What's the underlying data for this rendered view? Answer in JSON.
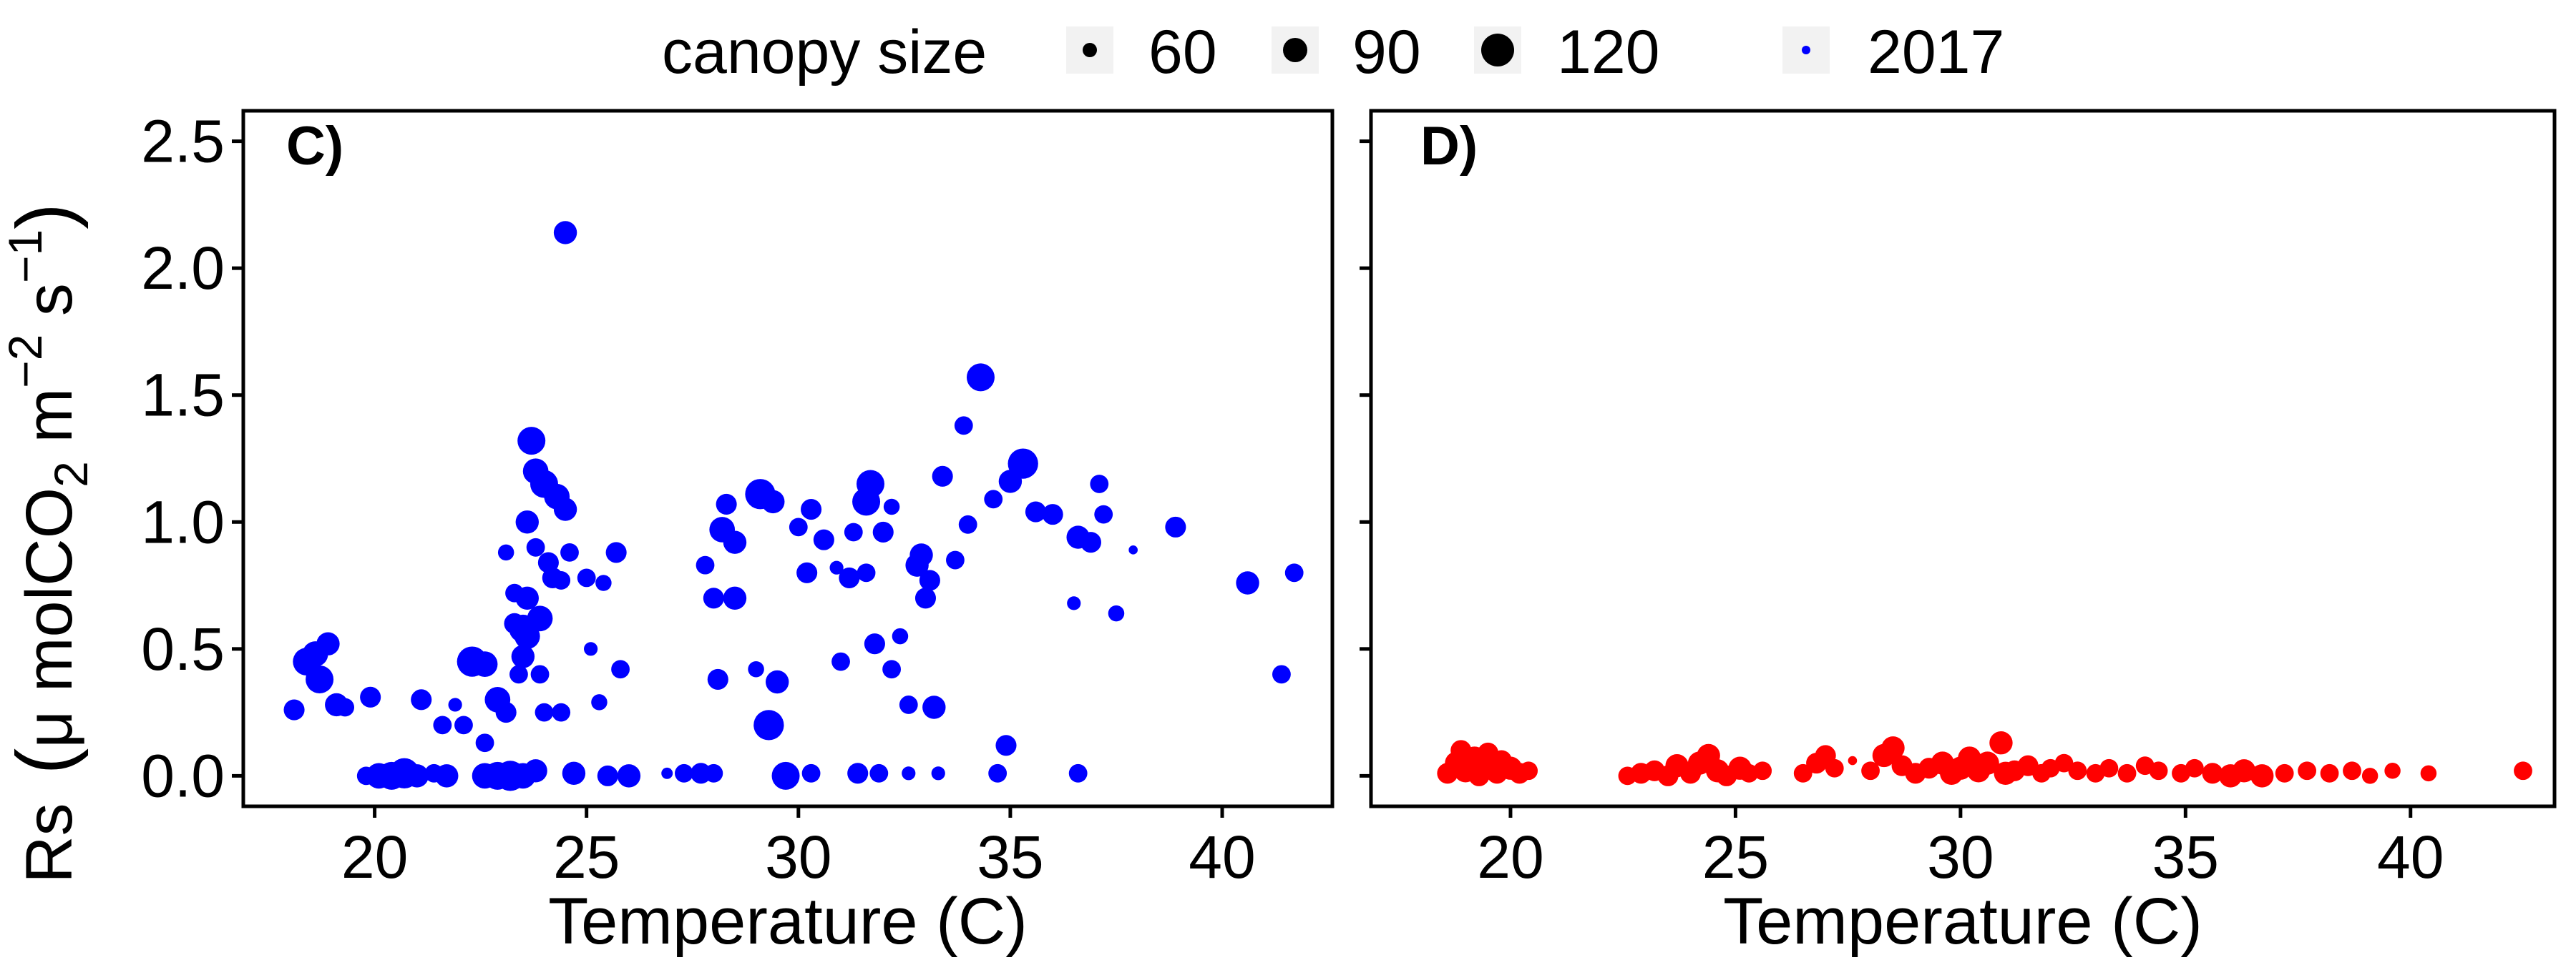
{
  "legend": {
    "title": "canopy size",
    "size_items": [
      {
        "label": "60",
        "size": 60
      },
      {
        "label": "90",
        "size": 90
      },
      {
        "label": "120",
        "size": 120
      }
    ],
    "year_item": {
      "label": "2017",
      "color": "#0000ff"
    }
  },
  "y_axis_title": {
    "main": "Rs",
    "unit_open": "(",
    "unit_body": "μ molCO",
    "unit_sub": "2",
    "unit_m": " m",
    "unit_sup1": "−2",
    "unit_s": " s",
    "unit_sup2": "−1",
    "unit_close": ")"
  },
  "chart_data": [
    {
      "type": "scatter",
      "panel_label": "C)",
      "color": "#0000ff",
      "xlabel": "Temperature (C)",
      "xlim": [
        16.9,
        42.6
      ],
      "ylim": [
        -0.12,
        2.62
      ],
      "xticks": [
        20,
        25,
        30,
        35,
        40
      ],
      "yticks": [
        0.0,
        0.5,
        1.0,
        1.5,
        2.0,
        2.5
      ],
      "ytick_labels": [
        "0.0",
        "0.5",
        "1.0",
        "1.5",
        "2.0",
        "2.5"
      ],
      "points": [
        [
          18.1,
          0.26,
          70
        ],
        [
          18.4,
          0.45,
          100
        ],
        [
          18.7,
          0.38,
          100
        ],
        [
          18.9,
          0.52,
          80
        ],
        [
          18.6,
          0.48,
          90
        ],
        [
          19.1,
          0.28,
          80
        ],
        [
          19.3,
          0.27,
          60
        ],
        [
          19.9,
          0.31,
          70
        ],
        [
          19.8,
          0.0,
          60
        ],
        [
          20.1,
          0.0,
          90
        ],
        [
          20.4,
          0.0,
          100
        ],
        [
          20.7,
          0.01,
          110
        ],
        [
          21.0,
          0.0,
          80
        ],
        [
          21.4,
          0.01,
          60
        ],
        [
          21.7,
          0.0,
          80
        ],
        [
          21.1,
          0.3,
          70
        ],
        [
          21.6,
          0.2,
          60
        ],
        [
          21.9,
          0.28,
          40
        ],
        [
          22.1,
          0.2,
          60
        ],
        [
          22.3,
          0.45,
          110
        ],
        [
          22.6,
          0.44,
          90
        ],
        [
          22.6,
          0.13,
          60
        ],
        [
          22.9,
          0.3,
          90
        ],
        [
          23.1,
          0.25,
          70
        ],
        [
          22.6,
          0.0,
          90
        ],
        [
          22.9,
          0.0,
          100
        ],
        [
          23.2,
          0.0,
          110
        ],
        [
          23.5,
          0.0,
          90
        ],
        [
          23.8,
          0.02,
          80
        ],
        [
          23.1,
          0.88,
          50
        ],
        [
          23.3,
          0.6,
          70
        ],
        [
          23.3,
          0.72,
          60
        ],
        [
          23.4,
          0.4,
          60
        ],
        [
          23.5,
          0.47,
          80
        ],
        [
          23.5,
          0.58,
          100
        ],
        [
          23.6,
          0.55,
          90
        ],
        [
          23.6,
          0.7,
          80
        ],
        [
          23.6,
          1.0,
          80
        ],
        [
          23.7,
          1.32,
          100
        ],
        [
          23.8,
          1.2,
          90
        ],
        [
          23.8,
          0.9,
          60
        ],
        [
          23.9,
          0.62,
          90
        ],
        [
          24.0,
          1.15,
          100
        ],
        [
          24.1,
          0.84,
          70
        ],
        [
          23.9,
          0.4,
          60
        ],
        [
          24.0,
          0.25,
          60
        ],
        [
          24.3,
          1.1,
          90
        ],
        [
          24.5,
          1.05,
          80
        ],
        [
          24.2,
          0.78,
          70
        ],
        [
          24.4,
          0.77,
          60
        ],
        [
          24.4,
          0.25,
          60
        ],
        [
          24.6,
          0.88,
          60
        ],
        [
          24.5,
          2.14,
          80
        ],
        [
          24.7,
          0.01,
          80
        ],
        [
          25.0,
          0.78,
          60
        ],
        [
          25.4,
          0.76,
          50
        ],
        [
          25.1,
          0.5,
          40
        ],
        [
          25.3,
          0.29,
          50
        ],
        [
          25.5,
          0.0,
          70
        ],
        [
          25.7,
          0.88,
          70
        ],
        [
          25.8,
          0.42,
          60
        ],
        [
          26.0,
          0.0,
          80
        ],
        [
          26.9,
          0.01,
          30
        ],
        [
          27.3,
          0.01,
          60
        ],
        [
          27.7,
          0.01,
          70
        ],
        [
          28.0,
          0.01,
          60
        ],
        [
          27.8,
          0.83,
          60
        ],
        [
          28.0,
          0.7,
          70
        ],
        [
          28.1,
          0.38,
          70
        ],
        [
          28.2,
          0.97,
          90
        ],
        [
          28.3,
          1.07,
          70
        ],
        [
          28.5,
          0.92,
          80
        ],
        [
          28.5,
          0.7,
          80
        ],
        [
          29.0,
          0.42,
          50
        ],
        [
          29.3,
          0.2,
          110
        ],
        [
          29.1,
          1.11,
          110
        ],
        [
          29.4,
          1.08,
          80
        ],
        [
          29.5,
          0.37,
          80
        ],
        [
          29.7,
          0.0,
          100
        ],
        [
          30.0,
          0.98,
          60
        ],
        [
          30.2,
          0.8,
          70
        ],
        [
          30.3,
          1.05,
          70
        ],
        [
          30.6,
          0.93,
          70
        ],
        [
          30.3,
          0.01,
          60
        ],
        [
          30.9,
          0.82,
          40
        ],
        [
          31.0,
          0.45,
          60
        ],
        [
          31.2,
          0.78,
          70
        ],
        [
          31.3,
          0.96,
          60
        ],
        [
          31.4,
          0.01,
          70
        ],
        [
          31.6,
          1.08,
          100
        ],
        [
          31.7,
          1.15,
          100
        ],
        [
          31.6,
          0.8,
          60
        ],
        [
          31.8,
          0.52,
          70
        ],
        [
          31.9,
          0.01,
          60
        ],
        [
          32.0,
          0.96,
          70
        ],
        [
          32.2,
          0.42,
          60
        ],
        [
          32.2,
          1.06,
          50
        ],
        [
          32.4,
          0.55,
          50
        ],
        [
          32.6,
          0.28,
          60
        ],
        [
          32.6,
          0.01,
          40
        ],
        [
          32.8,
          0.83,
          80
        ],
        [
          32.9,
          0.87,
          80
        ],
        [
          33.0,
          0.7,
          70
        ],
        [
          33.1,
          0.77,
          70
        ],
        [
          33.2,
          0.27,
          80
        ],
        [
          33.3,
          0.01,
          40
        ],
        [
          33.4,
          1.18,
          70
        ],
        [
          33.7,
          0.85,
          60
        ],
        [
          33.9,
          1.38,
          60
        ],
        [
          34.0,
          0.99,
          60
        ],
        [
          34.3,
          1.57,
          100
        ],
        [
          34.6,
          1.09,
          60
        ],
        [
          34.7,
          0.01,
          60
        ],
        [
          34.9,
          0.12,
          70
        ],
        [
          35.0,
          1.16,
          80
        ],
        [
          35.3,
          1.23,
          110
        ],
        [
          35.6,
          1.04,
          70
        ],
        [
          36.0,
          1.03,
          70
        ],
        [
          36.5,
          0.68,
          40
        ],
        [
          36.6,
          0.94,
          80
        ],
        [
          36.9,
          0.92,
          70
        ],
        [
          36.6,
          0.01,
          60
        ],
        [
          37.1,
          1.15,
          60
        ],
        [
          37.2,
          1.03,
          60
        ],
        [
          37.5,
          0.64,
          50
        ],
        [
          37.9,
          0.89,
          20
        ],
        [
          38.9,
          0.98,
          70
        ],
        [
          40.6,
          0.76,
          80
        ],
        [
          41.4,
          0.4,
          60
        ],
        [
          41.7,
          0.8,
          60
        ]
      ]
    },
    {
      "type": "scatter",
      "panel_label": "D)",
      "color": "#ff0000",
      "xlabel": "Temperature (C)",
      "xlim": [
        16.9,
        43.2
      ],
      "ylim": [
        -0.12,
        2.62
      ],
      "xticks": [
        20,
        25,
        30,
        35,
        40
      ],
      "yticks": [
        0.0,
        0.5,
        1.0,
        1.5,
        2.0,
        2.5
      ],
      "points": [
        [
          18.6,
          0.01,
          70
        ],
        [
          18.8,
          0.05,
          80
        ],
        [
          18.9,
          0.1,
          70
        ],
        [
          19.0,
          0.02,
          80
        ],
        [
          19.2,
          0.07,
          80
        ],
        [
          19.3,
          0.0,
          70
        ],
        [
          19.4,
          0.04,
          80
        ],
        [
          19.5,
          0.09,
          70
        ],
        [
          19.7,
          0.01,
          70
        ],
        [
          19.8,
          0.06,
          70
        ],
        [
          20.0,
          0.03,
          80
        ],
        [
          20.2,
          0.01,
          70
        ],
        [
          20.4,
          0.02,
          60
        ],
        [
          22.6,
          0.0,
          60
        ],
        [
          22.9,
          0.01,
          70
        ],
        [
          23.2,
          0.02,
          70
        ],
        [
          23.5,
          0.0,
          70
        ],
        [
          23.7,
          0.04,
          80
        ],
        [
          24.0,
          0.01,
          70
        ],
        [
          24.2,
          0.05,
          80
        ],
        [
          24.4,
          0.08,
          80
        ],
        [
          24.6,
          0.02,
          80
        ],
        [
          24.8,
          0.0,
          70
        ],
        [
          25.1,
          0.03,
          80
        ],
        [
          25.3,
          0.01,
          60
        ],
        [
          25.6,
          0.02,
          60
        ],
        [
          26.5,
          0.01,
          60
        ],
        [
          26.8,
          0.05,
          70
        ],
        [
          27.0,
          0.08,
          70
        ],
        [
          27.2,
          0.03,
          60
        ],
        [
          27.6,
          0.06,
          20
        ],
        [
          28.0,
          0.02,
          60
        ],
        [
          28.3,
          0.08,
          80
        ],
        [
          28.5,
          0.11,
          80
        ],
        [
          28.7,
          0.04,
          70
        ],
        [
          29.0,
          0.01,
          70
        ],
        [
          29.3,
          0.03,
          70
        ],
        [
          29.6,
          0.05,
          80
        ],
        [
          29.8,
          0.01,
          80
        ],
        [
          30.0,
          0.03,
          80
        ],
        [
          30.2,
          0.07,
          80
        ],
        [
          30.4,
          0.02,
          80
        ],
        [
          30.6,
          0.05,
          80
        ],
        [
          30.9,
          0.13,
          80
        ],
        [
          31.0,
          0.01,
          80
        ],
        [
          31.2,
          0.02,
          70
        ],
        [
          31.5,
          0.04,
          70
        ],
        [
          31.8,
          0.01,
          60
        ],
        [
          32.0,
          0.03,
          60
        ],
        [
          32.3,
          0.05,
          60
        ],
        [
          32.6,
          0.02,
          60
        ],
        [
          33.0,
          0.01,
          60
        ],
        [
          33.3,
          0.03,
          60
        ],
        [
          33.7,
          0.01,
          60
        ],
        [
          34.1,
          0.04,
          60
        ],
        [
          34.4,
          0.02,
          60
        ],
        [
          34.9,
          0.01,
          60
        ],
        [
          35.2,
          0.03,
          60
        ],
        [
          35.6,
          0.01,
          70
        ],
        [
          36.0,
          0.0,
          80
        ],
        [
          36.3,
          0.02,
          80
        ],
        [
          36.7,
          0.0,
          80
        ],
        [
          37.2,
          0.01,
          60
        ],
        [
          37.7,
          0.02,
          60
        ],
        [
          38.2,
          0.01,
          60
        ],
        [
          38.7,
          0.02,
          60
        ],
        [
          39.1,
          0.0,
          50
        ],
        [
          39.6,
          0.02,
          50
        ],
        [
          40.4,
          0.01,
          50
        ],
        [
          42.5,
          0.02,
          60
        ]
      ]
    }
  ]
}
